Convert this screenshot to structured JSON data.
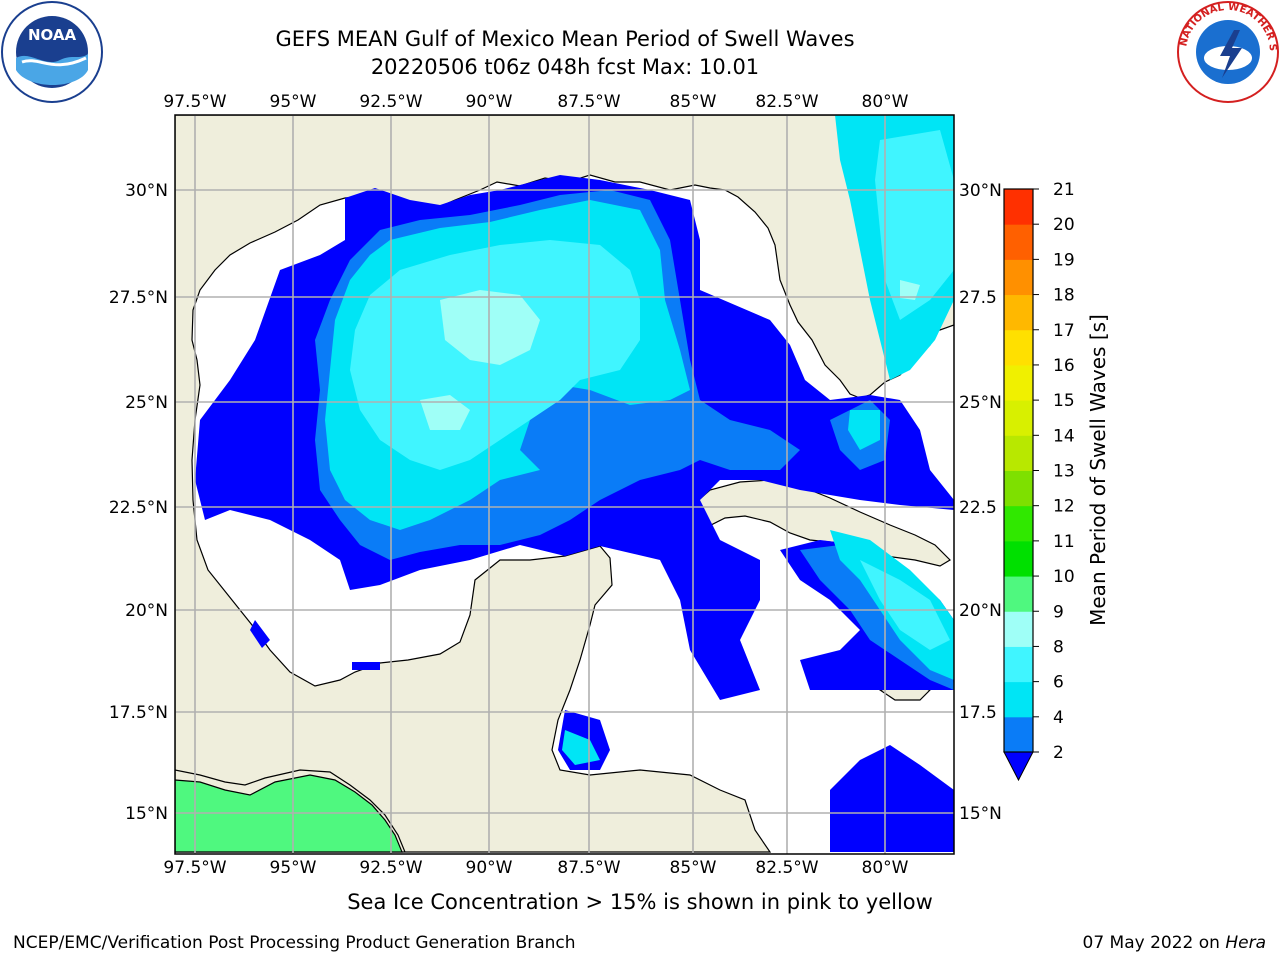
{
  "title": {
    "line1": "GEFS MEAN Gulf of Mexico Mean Period of Swell Waves",
    "line2": "20220506 t06z 048h fcst   Max: 10.01"
  },
  "map": {
    "lon_ticks": [
      "97.5°W",
      "95°W",
      "92.5°W",
      "90°W",
      "87.5°W",
      "85°W",
      "82.5°W",
      "80°W"
    ],
    "lat_ticks_left": [
      "30°N",
      "27.5°N",
      "25°N",
      "22.5°N",
      "20°N",
      "17.5°N",
      "15°N"
    ],
    "lat_ticks_right": [
      "30°N",
      "27.5",
      "25°N",
      "22.5",
      "20°N",
      "17.5",
      "15°N"
    ],
    "land_color": "#efeedc",
    "ocean_color": "#ffffff"
  },
  "colorbar": {
    "label": "Mean Period of Swell Waves [s]",
    "ticks": [
      "2",
      "4",
      "6",
      "8",
      "9",
      "10",
      "11",
      "12",
      "13",
      "14",
      "15",
      "16",
      "17",
      "18",
      "19",
      "20",
      "21"
    ],
    "colors": [
      "#0a7cf7",
      "#00e5f5",
      "#40f5ff",
      "#9ffff7",
      "#4ff87f",
      "#00e000",
      "#30e800",
      "#7ee000",
      "#b8e800",
      "#d8f000",
      "#f0f000",
      "#ffe000",
      "#ffb800",
      "#ff9000",
      "#ff6000",
      "#ff3000",
      "#ff0000"
    ],
    "under_color": "#0000ff"
  },
  "note": "Sea Ice Concentration > 15% is shown in pink to yellow",
  "footer": {
    "left": "NCEP/EMC/Verification Post Processing Product Generation Branch",
    "right_prefix": "07 May 2022 on ",
    "right_host": "Hera"
  },
  "logos": {
    "noaa_text": "NOAA",
    "nws_text": "NATIONAL WEATHER SERVICE"
  }
}
